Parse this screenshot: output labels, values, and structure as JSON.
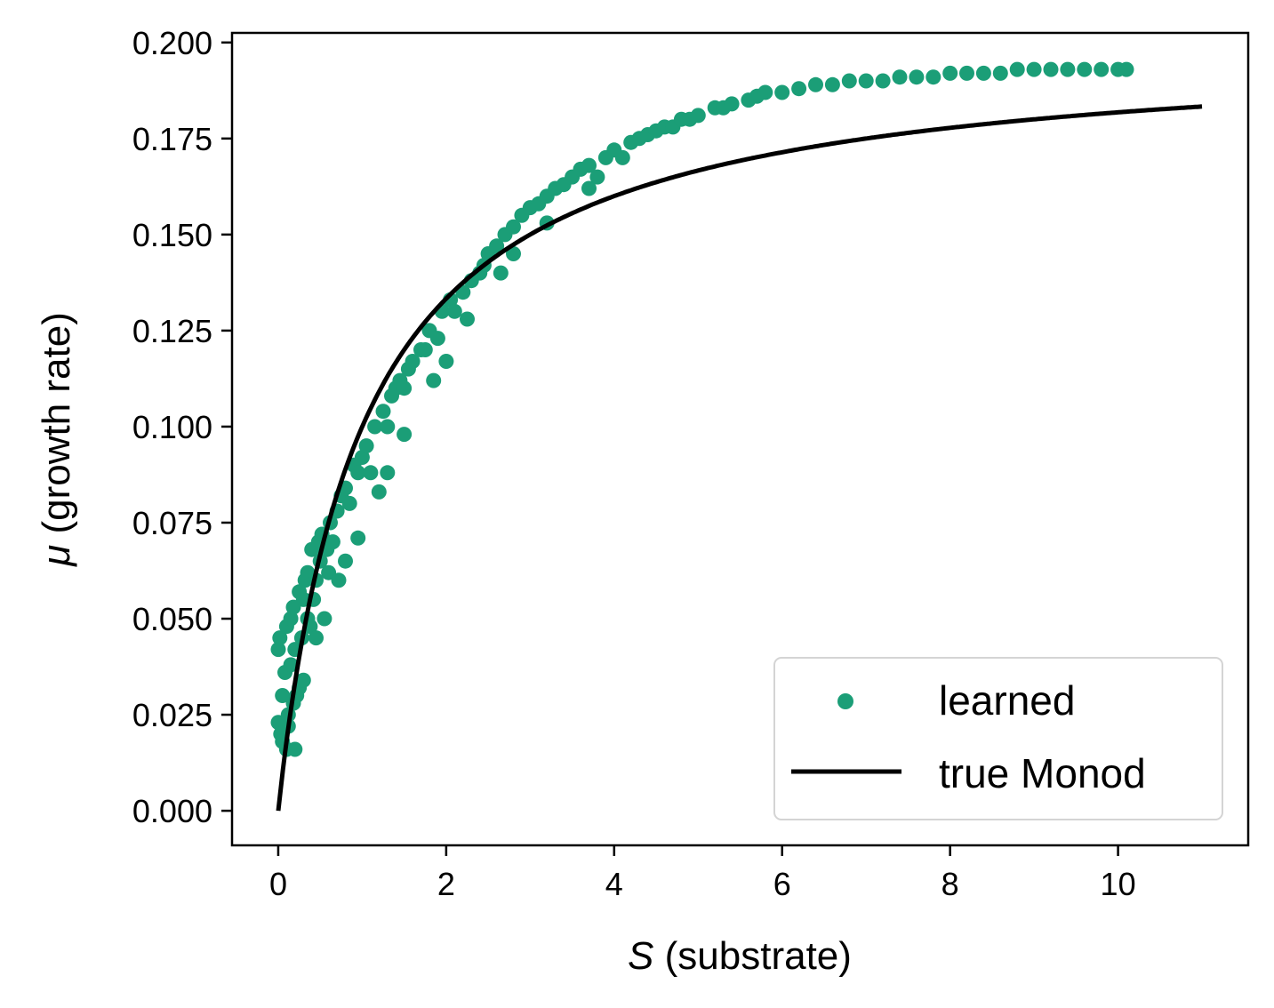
{
  "chart_data": {
    "type": "scatter",
    "x_axis": {
      "symbol": "S",
      "label": "(substrate)",
      "xlim": [
        -0.55,
        11.55
      ],
      "ticks": [
        0,
        2,
        4,
        6,
        8,
        10
      ],
      "tick_labels": [
        "0",
        "2",
        "4",
        "6",
        "8",
        "10"
      ]
    },
    "y_axis": {
      "symbol": "μ",
      "label": "(growth rate)",
      "ylim": [
        -0.009,
        0.2025
      ],
      "ticks": [
        0,
        0.025,
        0.05,
        0.075,
        0.1,
        0.125,
        0.15,
        0.175,
        0.2
      ],
      "tick_labels": [
        "0.000",
        "0.025",
        "0.050",
        "0.075",
        "0.100",
        "0.125",
        "0.150",
        "0.175",
        "0.200"
      ]
    },
    "grid": false,
    "legend": {
      "position": "lower-right"
    },
    "series": [
      {
        "name": "learned",
        "kind": "scatter",
        "color": "#1b9e77",
        "x": [
          0.0,
          0.0,
          0.02,
          0.03,
          0.05,
          0.05,
          0.08,
          0.1,
          0.1,
          0.12,
          0.12,
          0.15,
          0.15,
          0.18,
          0.18,
          0.2,
          0.2,
          0.22,
          0.25,
          0.25,
          0.28,
          0.3,
          0.3,
          0.32,
          0.35,
          0.35,
          0.38,
          0.4,
          0.42,
          0.45,
          0.45,
          0.48,
          0.5,
          0.52,
          0.55,
          0.58,
          0.6,
          0.62,
          0.65,
          0.7,
          0.72,
          0.75,
          0.8,
          0.8,
          0.85,
          0.9,
          0.95,
          0.95,
          1.0,
          1.05,
          1.1,
          1.15,
          1.2,
          1.25,
          1.3,
          1.3,
          1.35,
          1.4,
          1.45,
          1.5,
          1.5,
          1.55,
          1.6,
          1.7,
          1.75,
          1.8,
          1.85,
          1.9,
          1.95,
          2.0,
          2.05,
          2.1,
          2.2,
          2.25,
          2.3,
          2.4,
          2.45,
          2.5,
          2.6,
          2.65,
          2.7,
          2.8,
          2.8,
          2.9,
          3.0,
          3.1,
          3.2,
          3.2,
          3.3,
          3.4,
          3.5,
          3.6,
          3.7,
          3.7,
          3.8,
          3.9,
          4.0,
          4.1,
          4.2,
          4.3,
          4.4,
          4.5,
          4.6,
          4.7,
          4.8,
          4.9,
          5.0,
          5.2,
          5.3,
          5.4,
          5.6,
          5.7,
          5.8,
          6.0,
          6.2,
          6.4,
          6.6,
          6.8,
          7.0,
          7.2,
          7.4,
          7.6,
          7.8,
          8.0,
          8.2,
          8.4,
          8.6,
          8.8,
          9.0,
          9.2,
          9.4,
          9.6,
          9.8,
          10.0,
          10.1
        ],
        "y": [
          0.042,
          0.023,
          0.045,
          0.02,
          0.03,
          0.018,
          0.036,
          0.048,
          0.016,
          0.022,
          0.025,
          0.05,
          0.038,
          0.053,
          0.028,
          0.016,
          0.042,
          0.03,
          0.057,
          0.032,
          0.045,
          0.055,
          0.034,
          0.06,
          0.062,
          0.05,
          0.048,
          0.068,
          0.055,
          0.045,
          0.06,
          0.07,
          0.065,
          0.072,
          0.05,
          0.068,
          0.062,
          0.075,
          0.07,
          0.078,
          0.06,
          0.082,
          0.065,
          0.084,
          0.08,
          0.09,
          0.088,
          0.071,
          0.092,
          0.095,
          0.088,
          0.1,
          0.083,
          0.104,
          0.1,
          0.088,
          0.108,
          0.11,
          0.112,
          0.098,
          0.11,
          0.115,
          0.117,
          0.12,
          0.12,
          0.125,
          0.112,
          0.123,
          0.13,
          0.117,
          0.133,
          0.13,
          0.135,
          0.128,
          0.138,
          0.14,
          0.142,
          0.145,
          0.147,
          0.14,
          0.15,
          0.152,
          0.145,
          0.155,
          0.157,
          0.158,
          0.16,
          0.153,
          0.162,
          0.163,
          0.165,
          0.167,
          0.162,
          0.168,
          0.165,
          0.17,
          0.172,
          0.17,
          0.174,
          0.175,
          0.176,
          0.177,
          0.178,
          0.178,
          0.18,
          0.18,
          0.181,
          0.183,
          0.183,
          0.184,
          0.185,
          0.186,
          0.187,
          0.187,
          0.188,
          0.189,
          0.189,
          0.19,
          0.19,
          0.19,
          0.191,
          0.191,
          0.191,
          0.192,
          0.192,
          0.192,
          0.192,
          0.193,
          0.193,
          0.193,
          0.193,
          0.193,
          0.193,
          0.193,
          0.193
        ]
      },
      {
        "name": "true Monod",
        "kind": "line",
        "color": "#000000",
        "mu_max": 0.2,
        "Ks": 1.0,
        "x_range": [
          0,
          11
        ]
      }
    ]
  }
}
